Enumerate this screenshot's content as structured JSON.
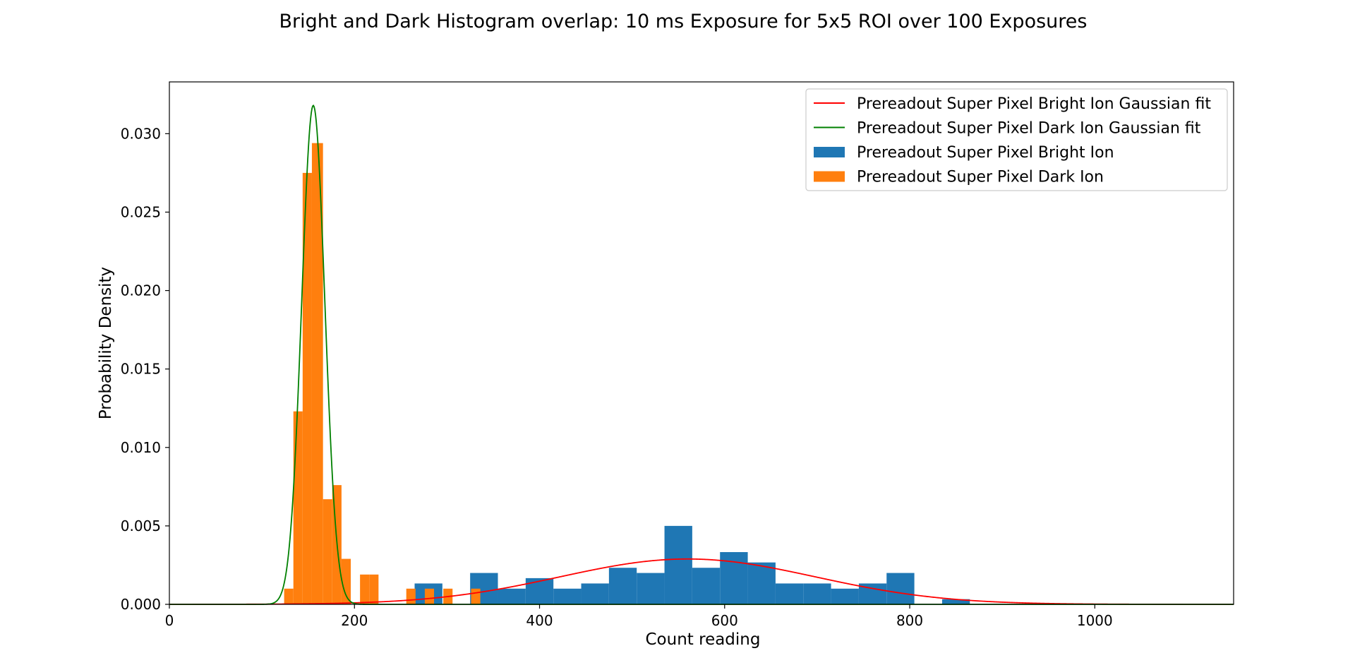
{
  "chart_data": {
    "type": "bar",
    "title": "Bright and Dark Histogram overlap: 10 ms Exposure for 5x5 ROI over 100 Exposures",
    "xlabel": "Count reading",
    "ylabel": "Probability Density",
    "xlim": [
      0,
      1150
    ],
    "ylim": [
      0,
      0.0333
    ],
    "xticks": [
      0,
      200,
      400,
      600,
      800,
      1000
    ],
    "yticks": [
      0.0,
      0.005,
      0.01,
      0.015,
      0.02,
      0.025,
      0.03
    ],
    "xtick_labels": [
      "0",
      "200",
      "400",
      "600",
      "800",
      "1000"
    ],
    "ytick_labels": [
      "0.000",
      "0.005",
      "0.010",
      "0.015",
      "0.020",
      "0.025",
      "0.030"
    ],
    "grid": false,
    "legend_position": "top-right",
    "legend": [
      {
        "label": "Prereadout Super Pixel Bright Ion Gaussian fit",
        "kind": "line",
        "color": "#ff0000"
      },
      {
        "label": "Prereadout Super Pixel Dark Ion Gaussian fit",
        "kind": "line",
        "color": "#008000"
      },
      {
        "label": "Prereadout Super Pixel Bright Ion",
        "kind": "patch",
        "color": "#1f77b4"
      },
      {
        "label": "Prereadout Super Pixel Dark Ion",
        "kind": "patch",
        "color": "#ff7f0e"
      }
    ],
    "histograms": [
      {
        "name": "Prereadout Super Pixel Bright Ion",
        "color": "#1f77b4",
        "bin_edges": [
          265,
          295,
          325,
          355,
          385,
          415,
          445,
          475,
          505,
          535,
          565,
          595,
          625,
          655,
          685,
          715,
          745,
          775,
          805,
          835,
          865
        ],
        "values": [
          0.00133,
          0.0,
          0.002,
          0.001,
          0.00167,
          0.001,
          0.00133,
          0.00233,
          0.002,
          0.005,
          0.00233,
          0.00333,
          0.00267,
          0.00133,
          0.00133,
          0.001,
          0.00133,
          0.002,
          0.0,
          0.00033
        ]
      },
      {
        "name": "Prereadout Super Pixel Dark Ion",
        "color": "#ff7f0e",
        "bin_edges": [
          124,
          134,
          144,
          154,
          166,
          176,
          186,
          196,
          206,
          216,
          226,
          236,
          246,
          256,
          266,
          276,
          286,
          296,
          306,
          316,
          326,
          336
        ],
        "values": [
          0.001,
          0.0123,
          0.0275,
          0.0294,
          0.0067,
          0.0076,
          0.0029,
          0.0,
          0.0019,
          0.0019,
          0.0,
          0.0,
          0.0,
          0.001,
          0.0,
          0.001,
          0.0,
          0.001,
          0.0,
          0.0,
          0.001
        ]
      }
    ],
    "series": [
      {
        "name": "Prereadout Super Pixel Bright Ion Gaussian fit",
        "type": "gaussian",
        "color": "#ff0000",
        "mean": 560,
        "sigma": 138,
        "amplitude": 0.00289
      },
      {
        "name": "Prereadout Super Pixel Dark Ion Gaussian fit",
        "type": "gaussian",
        "color": "#008000",
        "mean": 155.5,
        "sigma": 12.5,
        "amplitude": 0.0318
      }
    ]
  }
}
